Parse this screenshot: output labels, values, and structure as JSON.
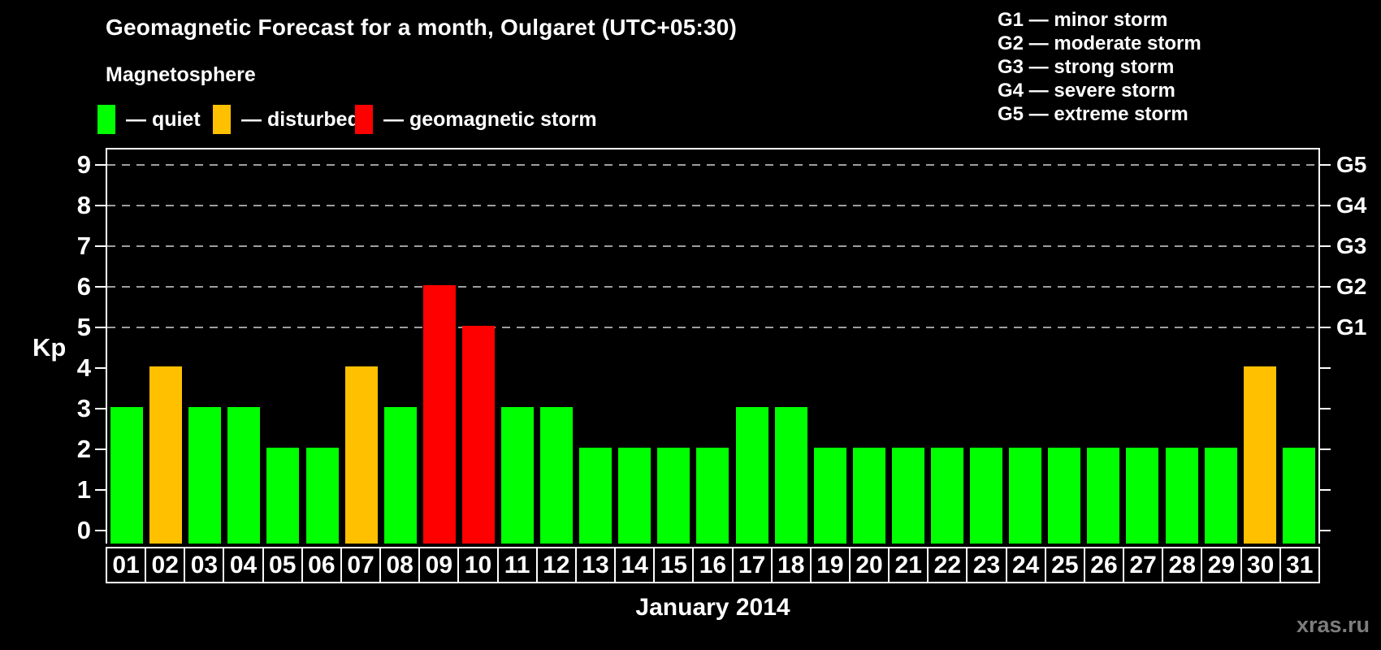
{
  "title": "Geomagnetic Forecast for a month, Oulgaret (UTC+05:30)",
  "subtitle": "Magnetosphere",
  "legend": {
    "items": [
      {
        "name": "quiet",
        "label": "— quiet",
        "color": "#00ff00"
      },
      {
        "name": "disturbed",
        "label": "— disturbed",
        "color": "#ffc000"
      },
      {
        "name": "storm",
        "label": "— geomagnetic storm",
        "color": "#ff0000"
      }
    ]
  },
  "g_legend": [
    "G1 — minor storm",
    "G2 — moderate storm",
    "G3 — strong storm",
    "G4 — severe storm",
    "G5 — extreme storm"
  ],
  "watermark": "xras.ru",
  "chart_data": {
    "type": "bar",
    "title": "Geomagnetic Forecast for a month, Oulgaret (UTC+05:30)",
    "xlabel": "January 2014",
    "ylabel": "Kp",
    "ylim": [
      0,
      9
    ],
    "y_ticks": [
      0,
      1,
      2,
      3,
      4,
      5,
      6,
      7,
      8,
      9
    ],
    "gridlines_at_kp": [
      5,
      6,
      7,
      8,
      9
    ],
    "grid": "horizontal dashed gray lines only at storm levels Kp 5-9",
    "legend_position": "top-left",
    "right_axis": [
      {
        "kp": 5,
        "label": "G1"
      },
      {
        "kp": 6,
        "label": "G2"
      },
      {
        "kp": 7,
        "label": "G3"
      },
      {
        "kp": 8,
        "label": "G4"
      },
      {
        "kp": 9,
        "label": "G5"
      }
    ],
    "categories": [
      "01",
      "02",
      "03",
      "04",
      "05",
      "06",
      "07",
      "08",
      "09",
      "10",
      "11",
      "12",
      "13",
      "14",
      "15",
      "16",
      "17",
      "18",
      "19",
      "20",
      "21",
      "22",
      "23",
      "24",
      "25",
      "26",
      "27",
      "28",
      "29",
      "30",
      "31"
    ],
    "values": [
      3,
      4,
      3,
      3,
      2,
      2,
      4,
      3,
      6,
      5,
      3,
      3,
      2,
      2,
      2,
      2,
      3,
      3,
      2,
      2,
      2,
      2,
      2,
      2,
      2,
      2,
      2,
      2,
      2,
      4,
      2
    ],
    "states": [
      "quiet",
      "disturbed",
      "quiet",
      "quiet",
      "quiet",
      "quiet",
      "disturbed",
      "quiet",
      "storm",
      "storm",
      "quiet",
      "quiet",
      "quiet",
      "quiet",
      "quiet",
      "quiet",
      "quiet",
      "quiet",
      "quiet",
      "quiet",
      "quiet",
      "quiet",
      "quiet",
      "quiet",
      "quiet",
      "quiet",
      "quiet",
      "quiet",
      "quiet",
      "disturbed",
      "quiet"
    ],
    "state_colors": {
      "quiet": "#00ff00",
      "disturbed": "#ffc000",
      "storm": "#ff0000"
    }
  }
}
